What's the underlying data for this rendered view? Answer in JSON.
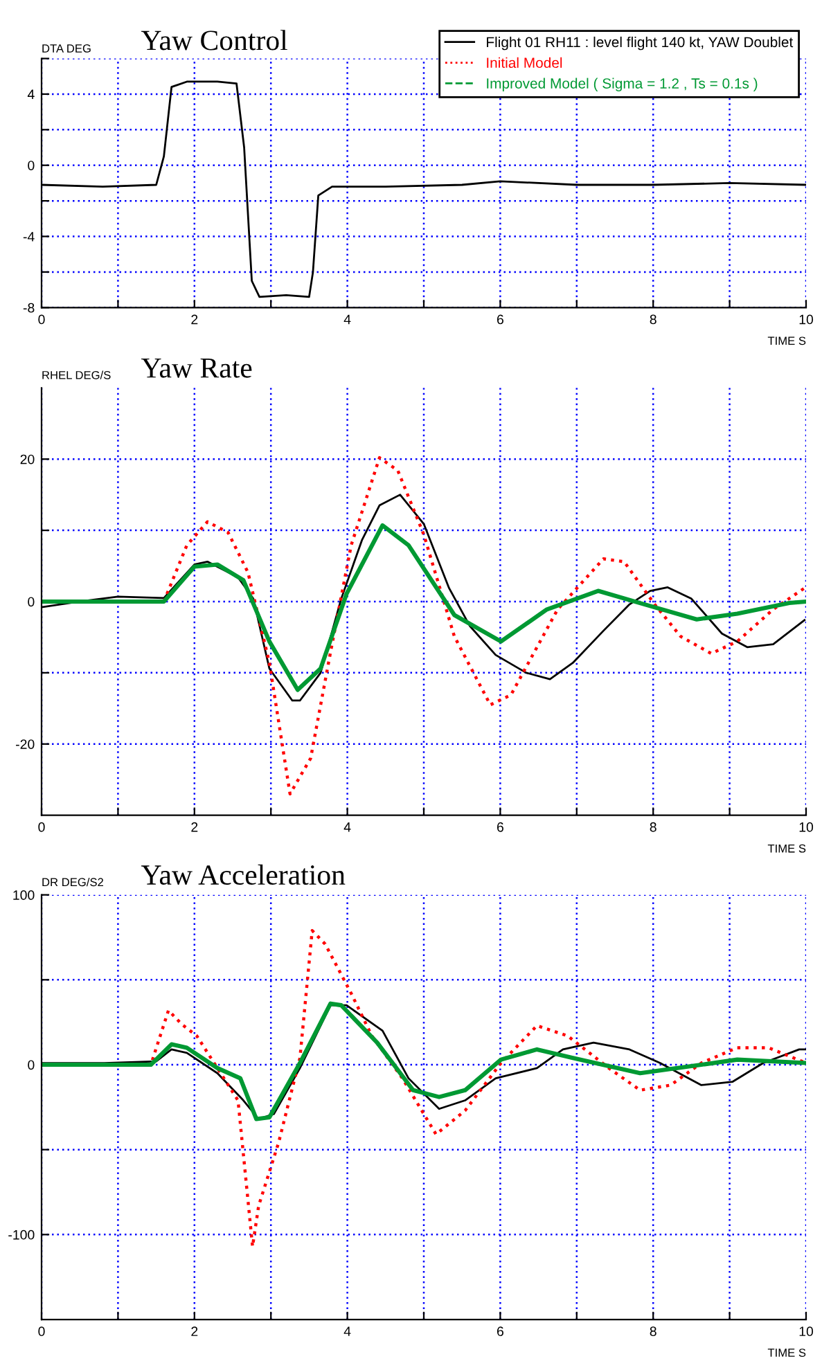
{
  "chart_data": [
    {
      "type": "line",
      "title": "Yaw Control",
      "ylabel": "DTA DEG",
      "xlabel": "TIME S",
      "xlim": [
        0,
        10
      ],
      "ylim": [
        -8,
        6
      ],
      "xticks": [
        0,
        {
          "value": 1,
          "label": null
        },
        2,
        {
          "value": 3,
          "label": null
        },
        4,
        {
          "value": 5,
          "label": null
        },
        6,
        {
          "value": 7,
          "label": null
        },
        8,
        {
          "value": 9,
          "label": null
        },
        10
      ],
      "yticks": [
        -8,
        {
          "value": -6,
          "label": null
        },
        -4,
        {
          "value": -2,
          "label": null
        },
        0,
        {
          "value": 2,
          "label": null
        },
        4,
        {
          "value": 6,
          "label": null
        }
      ],
      "grid": true,
      "legend": "top right",
      "series": [
        {
          "name": "Flight 01 RH11 : level flight 140 kt, YAW Doublet",
          "color": "#000000",
          "line_style": "solid",
          "x": [
            0,
            0.8,
            1.5,
            1.6,
            1.7,
            1.9,
            2.3,
            2.55,
            2.65,
            2.75,
            2.85,
            3.2,
            3.5,
            3.55,
            3.62,
            3.8,
            4.5,
            5.5,
            6.0,
            7.0,
            8.0,
            9.0,
            10.0
          ],
          "values": [
            -1.1,
            -1.2,
            -1.1,
            0.5,
            4.4,
            4.7,
            4.7,
            4.6,
            1.0,
            -6.5,
            -7.4,
            -7.3,
            -7.4,
            -6.0,
            -1.7,
            -1.2,
            -1.2,
            -1.1,
            -0.9,
            -1.1,
            -1.1,
            -1.0,
            -1.1
          ]
        }
      ]
    },
    {
      "type": "line",
      "title": "Yaw Rate",
      "ylabel": "RHEL DEG/S",
      "xlabel": "TIME S",
      "xlim": [
        0,
        10
      ],
      "ylim": [
        -30,
        30
      ],
      "xticks": [
        0,
        {
          "value": 1,
          "label": null
        },
        2,
        {
          "value": 3,
          "label": null
        },
        4,
        {
          "value": 5,
          "label": null
        },
        6,
        {
          "value": 7,
          "label": null
        },
        8,
        {
          "value": 9,
          "label": null
        },
        10
      ],
      "yticks": [
        -20,
        {
          "value": -10,
          "label": null
        },
        0,
        {
          "value": 10,
          "label": null
        },
        20
      ],
      "grid": true,
      "legend": "top right",
      "series": [
        {
          "name": "Flight 01 RH11 : level flight 140 kt, YAW Doublet",
          "color": "#000000",
          "line_style": "solid",
          "x": [
            0,
            0.5,
            1.0,
            1.6,
            2.0,
            2.17,
            2.57,
            2.77,
            2.98,
            3.28,
            3.38,
            3.65,
            3.92,
            4.19,
            4.42,
            4.69,
            5.0,
            5.33,
            5.6,
            5.94,
            6.34,
            6.65,
            6.95,
            7.35,
            7.69,
            7.96,
            8.19,
            8.5,
            8.9,
            9.23,
            9.57,
            9.98
          ],
          "values": [
            -0.8,
            0,
            0.7,
            0.5,
            5.2,
            5.6,
            3.4,
            0.4,
            -9.4,
            -13.9,
            -13.9,
            -10,
            0.4,
            8.6,
            13.5,
            15,
            10.9,
            1.9,
            -3.4,
            -7.5,
            -10,
            -10.9,
            -8.6,
            -4.1,
            -0.4,
            1.5,
            2.0,
            0.4,
            -4.5,
            -6.4,
            -6,
            -2.6
          ]
        },
        {
          "name": "Initial Model",
          "color": "#ff0000",
          "line_style": "dotted",
          "x": [
            0,
            1.6,
            1.9,
            2.17,
            2.44,
            2.7,
            2.98,
            3.25,
            3.52,
            3.78,
            4.05,
            4.42,
            4.66,
            5.0,
            5.4,
            5.87,
            6.14,
            6.75,
            7.35,
            7.62,
            8.02,
            8.36,
            8.76,
            9.1,
            9.57,
            9.98
          ],
          "values": [
            0,
            0,
            7.9,
            11.2,
            9.7,
            4.1,
            -8.6,
            -27,
            -22,
            -7.1,
            7.9,
            20.2,
            18.4,
            9.4,
            -4.9,
            -14.5,
            -13.1,
            -1.1,
            6.0,
            5.6,
            -0.4,
            -4.9,
            -7.3,
            -5.6,
            -1.1,
            1.9
          ]
        },
        {
          "name": "Improved Model ( Sigma = 1.2 , Ts = 0.1s )",
          "color": "#009933",
          "line_style": "solid",
          "x": [
            0,
            1.6,
            2.0,
            2.3,
            2.64,
            2.98,
            3.35,
            3.65,
            3.99,
            4.46,
            4.8,
            5.4,
            6.01,
            6.61,
            7.28,
            7.89,
            8.57,
            9.1,
            9.78,
            10.0
          ],
          "values": [
            0,
            0,
            4.9,
            5.2,
            3.0,
            -5.6,
            -12.4,
            -9.4,
            1.1,
            10.7,
            7.9,
            -1.9,
            -5.6,
            -1.1,
            1.5,
            -0.4,
            -2.5,
            -1.7,
            -0.2,
            0
          ]
        }
      ]
    },
    {
      "type": "line",
      "title": "Yaw Acceleration",
      "ylabel": "DR DEG/S2",
      "xlabel": "TIME S",
      "xlim": [
        0,
        10
      ],
      "ylim": [
        -150,
        100
      ],
      "xticks": [
        0,
        {
          "value": 1,
          "label": null
        },
        2,
        {
          "value": 3,
          "label": null
        },
        4,
        {
          "value": 5,
          "label": null
        },
        6,
        {
          "value": 7,
          "label": null
        },
        8,
        {
          "value": 9,
          "label": null
        },
        10
      ],
      "yticks": [
        -100,
        {
          "value": -50,
          "label": null
        },
        0,
        {
          "value": 50,
          "label": null
        },
        100
      ],
      "grid": true,
      "legend": "top right",
      "series": [
        {
          "name": "Flight 01 RH11 : level flight 140 kt, YAW Doublet",
          "color": "#000000",
          "line_style": "solid",
          "x": [
            0,
            0.82,
            1.5,
            1.7,
            1.9,
            2.3,
            2.64,
            2.84,
            3.04,
            3.38,
            3.78,
            3.99,
            4.46,
            4.8,
            5.2,
            5.54,
            5.94,
            6.48,
            6.82,
            7.22,
            7.69,
            8.09,
            8.63,
            9.04,
            9.44,
            9.91,
            10.0
          ],
          "values": [
            1,
            1,
            2,
            9,
            7,
            -5,
            -21,
            -32,
            -29,
            -2,
            35,
            35,
            20,
            -8,
            -26,
            -21,
            -8,
            -2,
            9,
            13,
            9,
            1,
            -12,
            -10,
            1,
            9,
            9
          ]
        },
        {
          "name": "Initial Model",
          "color": "#ff0000",
          "line_style": "dotted",
          "x": [
            0,
            1.43,
            1.66,
            1.83,
            2.03,
            2.3,
            2.57,
            2.76,
            2.84,
            3.1,
            3.38,
            3.54,
            3.71,
            4.05,
            4.32,
            4.72,
            5.16,
            5.54,
            6.01,
            6.48,
            6.88,
            7.42,
            7.83,
            8.23,
            8.63,
            9.1,
            9.51,
            10.0
          ],
          "values": [
            0,
            0,
            32,
            24,
            17,
            -2,
            -21,
            -107,
            -83,
            -46,
            4,
            79,
            71,
            42,
            17,
            -8,
            -41,
            -27,
            1,
            23,
            17,
            -2,
            -15,
            -12,
            1,
            10,
            10,
            1
          ]
        },
        {
          "name": "Improved Model ( Sigma = 1.2 , Ts = 0.1s )",
          "color": "#009933",
          "line_style": "solid",
          "x": [
            0,
            1.43,
            1.7,
            1.9,
            2.3,
            2.6,
            2.81,
            2.98,
            3.38,
            3.78,
            3.92,
            4.39,
            4.86,
            5.2,
            5.54,
            6.01,
            6.48,
            6.95,
            7.83,
            8.63,
            9.1,
            10.0
          ],
          "values": [
            0,
            0,
            12,
            10,
            -2,
            -8,
            -32,
            -31,
            1,
            36,
            35,
            13,
            -15,
            -19,
            -15,
            3,
            9,
            4,
            -5,
            0,
            3,
            1
          ]
        }
      ]
    }
  ]
}
